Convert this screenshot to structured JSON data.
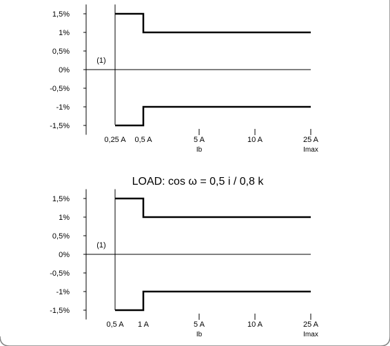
{
  "chart_data": [
    {
      "type": "line",
      "title": "",
      "ylim": [
        -1.75,
        1.75
      ],
      "y_ticks": [
        "1,5%",
        "1%",
        "0,5%",
        "0%",
        "-0,5%",
        "-1%",
        "-1,5%"
      ],
      "y_tick_values": [
        1.5,
        1,
        0.5,
        0,
        -0.5,
        -1,
        -1.5
      ],
      "x_ticks": [
        {
          "label": "0,25 A",
          "sublabel": "",
          "tick": false
        },
        {
          "label": "0,5 A",
          "sublabel": "",
          "tick": false
        },
        {
          "label": "5 A",
          "sublabel": "Ib",
          "tick": true
        },
        {
          "label": "10 A",
          "sublabel": "",
          "tick": true
        },
        {
          "label": "25 A",
          "sublabel": "Imax",
          "tick": true
        }
      ],
      "annotation": "(1)",
      "series": [
        {
          "x": [
            "0,25 A",
            "0,5 A",
            "0,5 A",
            "25 A"
          ],
          "y": [
            1.5,
            1.5,
            1,
            1
          ]
        },
        {
          "x": [
            "0,25 A",
            "0,5 A",
            "0,5 A",
            "25 A"
          ],
          "y": [
            -1.5,
            -1.5,
            -1,
            -1
          ]
        }
      ]
    },
    {
      "type": "line",
      "title": "LOAD: cos ω = 0,5 i / 0,8 k",
      "ylim": [
        -1.75,
        1.75
      ],
      "y_ticks": [
        "1,5%",
        "1%",
        "0,5%",
        "0%",
        "-0,5%",
        "-1%",
        "-1,5%"
      ],
      "y_tick_values": [
        1.5,
        1,
        0.5,
        0,
        -0.5,
        -1,
        -1.5
      ],
      "x_ticks": [
        {
          "label": "0,5 A",
          "sublabel": "",
          "tick": false
        },
        {
          "label": "1 A",
          "sublabel": "",
          "tick": false
        },
        {
          "label": "5 A",
          "sublabel": "Ib",
          "tick": true
        },
        {
          "label": "10 A",
          "sublabel": "",
          "tick": true
        },
        {
          "label": "25 A",
          "sublabel": "Imax",
          "tick": true
        }
      ],
      "annotation": "(1)",
      "series": [
        {
          "x": [
            "0,5 A",
            "1 A",
            "1 A",
            "25 A"
          ],
          "y": [
            1.5,
            1.5,
            1,
            1
          ]
        },
        {
          "x": [
            "0,5 A",
            "1 A",
            "1 A",
            "25 A"
          ],
          "y": [
            -1.5,
            -1.5,
            -1,
            -1
          ]
        }
      ]
    }
  ],
  "colors": {
    "line": "#000000",
    "frame": "#808080"
  }
}
